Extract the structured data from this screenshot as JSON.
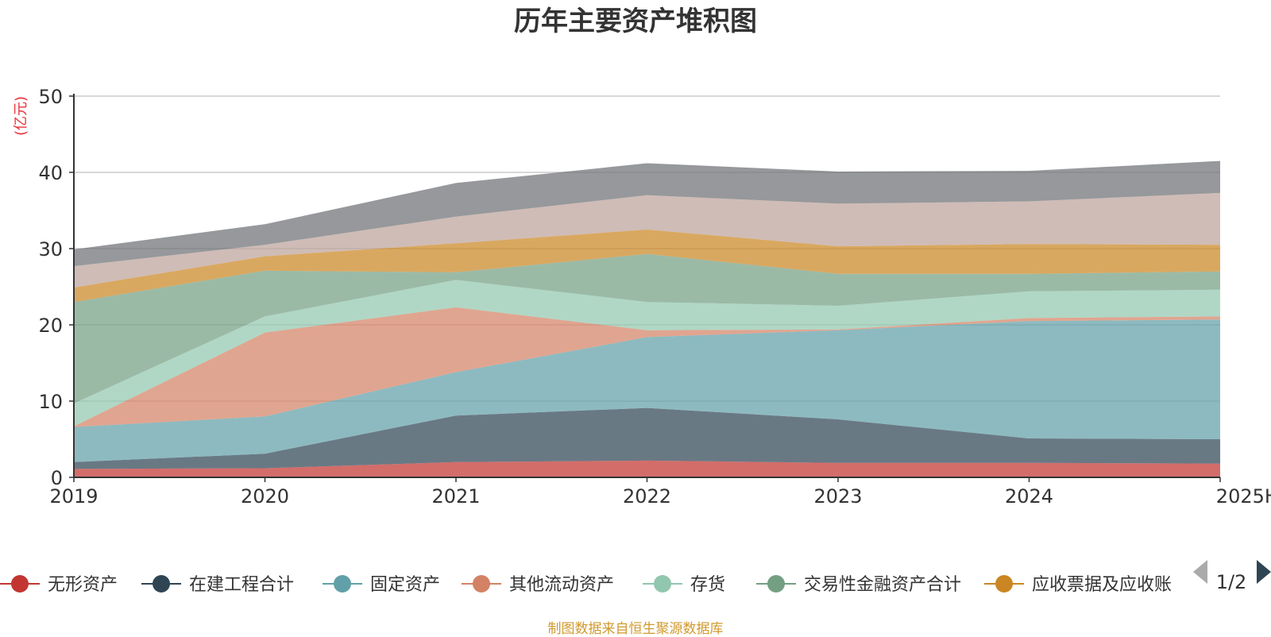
{
  "chart_data": {
    "type": "area",
    "title": "历年主要资产堆积图",
    "ylabel": "(亿元)",
    "xlabel": "",
    "ylim": [
      0,
      50
    ],
    "yticks": [
      0,
      10,
      20,
      30,
      40,
      50
    ],
    "categories": [
      "2019",
      "2020",
      "2021",
      "2022",
      "2023",
      "2024",
      "2025H1"
    ],
    "grid": true,
    "stacked": true,
    "legend_position": "bottom",
    "series": [
      {
        "name": "无形资产",
        "color": "#c23531",
        "values": [
          1.1,
          1.2,
          2.0,
          2.2,
          1.9,
          1.9,
          1.8
        ]
      },
      {
        "name": "在建工程合计",
        "color": "#2f4554",
        "values": [
          0.9,
          1.9,
          6.1,
          6.9,
          5.7,
          3.2,
          3.2
        ]
      },
      {
        "name": "固定资产",
        "color": "#61a0a8",
        "values": [
          4.6,
          4.9,
          5.7,
          9.3,
          11.7,
          15.4,
          15.7
        ]
      },
      {
        "name": "其他流动资产",
        "color": "#d48265",
        "values": [
          0.1,
          11.0,
          8.5,
          0.9,
          0.1,
          0.4,
          0.4
        ]
      },
      {
        "name": "存货",
        "color": "#91c7ae",
        "values": [
          3.0,
          2.1,
          3.6,
          3.7,
          3.1,
          3.5,
          3.5
        ]
      },
      {
        "name": "交易性金融资产合计",
        "color": "#749f83",
        "values": [
          13.3,
          6.0,
          1.0,
          6.3,
          4.2,
          2.3,
          2.4
        ]
      },
      {
        "name": "应收票据及应收账",
        "color": "#ca8622",
        "values": [
          1.9,
          1.9,
          3.8,
          3.2,
          3.6,
          3.9,
          3.5
        ]
      },
      {
        "name": "",
        "color": "#bda29a",
        "values": [
          2.8,
          1.5,
          3.5,
          4.5,
          5.6,
          5.6,
          6.8
        ]
      },
      {
        "name": "",
        "color": "#6e7074",
        "values": [
          2.2,
          2.7,
          4.4,
          4.2,
          4.2,
          4.0,
          4.2
        ]
      }
    ],
    "legend": {
      "page_indicator": "1/2"
    }
  },
  "source_note": "制图数据来自恒生聚源数据库"
}
